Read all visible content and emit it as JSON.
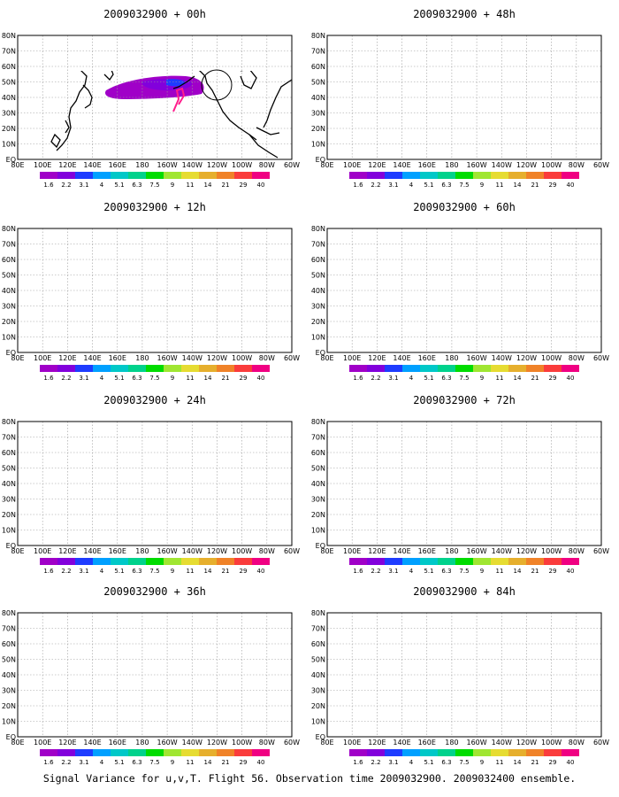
{
  "figure": {
    "caption": "Signal Variance for u,v,T. Flight 56. Observation time 2009032900. 2009032400 ensemble."
  },
  "axes": {
    "x_tick_labels": [
      "80E",
      "100E",
      "120E",
      "140E",
      "160E",
      "180",
      "160W",
      "140W",
      "120W",
      "100W",
      "80W",
      "60W"
    ],
    "y_tick_labels": [
      "EQ",
      "10N",
      "20N",
      "30N",
      "40N",
      "50N",
      "60N",
      "70N",
      "80N"
    ]
  },
  "colorbar": {
    "labels": [
      "1.6",
      "2.2",
      "3.1",
      "4",
      "5.1",
      "6.3",
      "7.5",
      "9",
      "11",
      "14",
      "21",
      "29",
      "40"
    ],
    "colors": [
      "#a000c8",
      "#8200dc",
      "#1e3cff",
      "#00a0ff",
      "#00c8c8",
      "#00d28c",
      "#00dc00",
      "#a0e632",
      "#e6dc32",
      "#e6af2d",
      "#f08228",
      "#fa3c3c",
      "#f00082"
    ]
  },
  "panels": [
    {
      "title": "2009032900 + 00h"
    },
    {
      "title": "2009032900 + 48h"
    },
    {
      "title": "2009032900 + 12h"
    },
    {
      "title": "2009032900 + 60h"
    },
    {
      "title": "2009032900 + 24h"
    },
    {
      "title": "2009032900 + 72h"
    },
    {
      "title": "2009032900 + 36h"
    },
    {
      "title": "2009032900 + 84h"
    }
  ]
}
